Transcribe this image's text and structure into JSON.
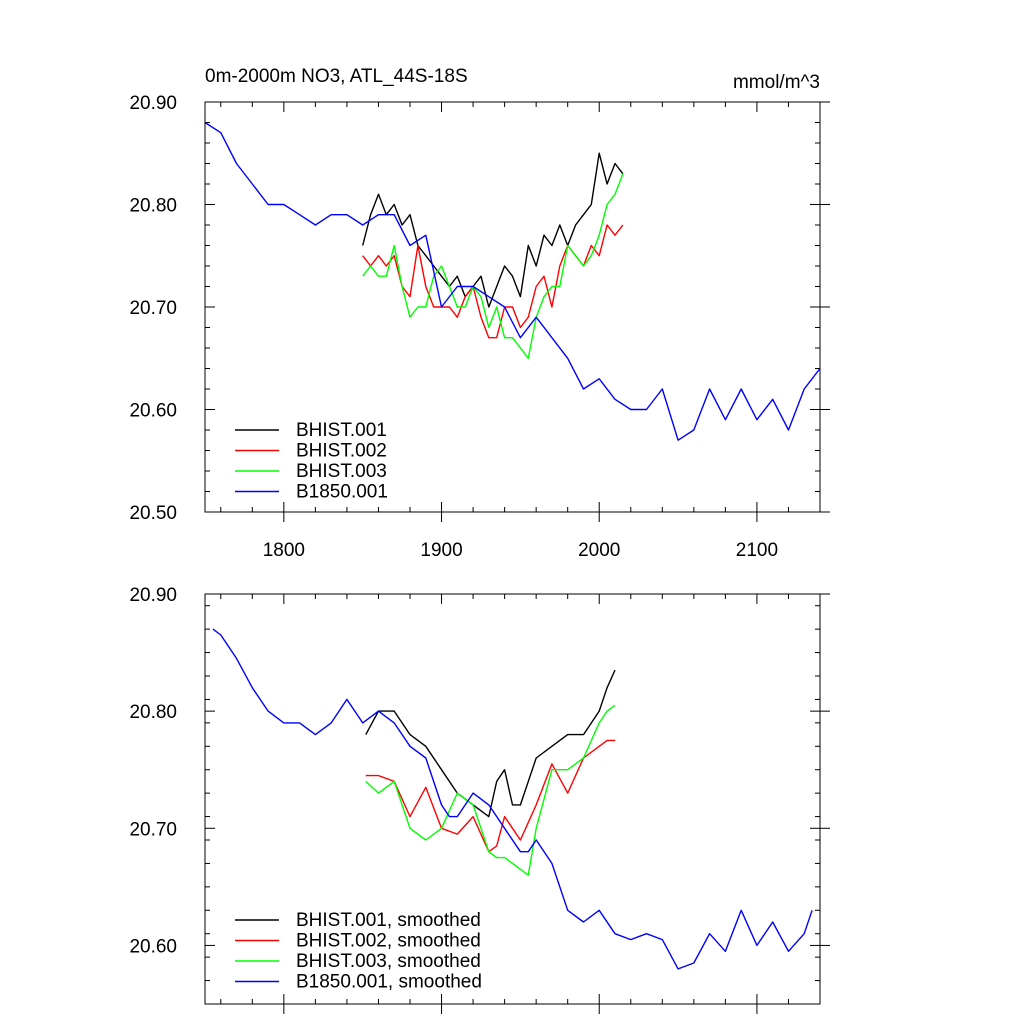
{
  "chart_data": [
    {
      "type": "line",
      "title": "0m-2000m NO3, ATL_44S-18S",
      "units": "mmol/m^3",
      "xlim": [
        1750,
        2140
      ],
      "ylim": [
        20.5,
        20.9
      ],
      "xticks": [
        1800,
        1900,
        2000,
        2100
      ],
      "yticks": [
        20.5,
        20.6,
        20.7,
        20.8,
        20.9
      ],
      "xtick_labels": [
        "1800",
        "1900",
        "2000",
        "2100"
      ],
      "ytick_labels": [
        "20.50",
        "20.60",
        "20.70",
        "20.80",
        "20.90"
      ],
      "grid": false,
      "legend_position": "bottom-left",
      "series": [
        {
          "name": "BHIST.001",
          "color": "#000000",
          "x": [
            1850,
            1855,
            1860,
            1865,
            1870,
            1875,
            1880,
            1885,
            1890,
            1895,
            1900,
            1905,
            1910,
            1915,
            1920,
            1925,
            1930,
            1935,
            1940,
            1945,
            1950,
            1955,
            1960,
            1965,
            1970,
            1975,
            1980,
            1985,
            1990,
            1995,
            2000,
            2005,
            2010,
            2015
          ],
          "y": [
            20.76,
            20.79,
            20.81,
            20.79,
            20.8,
            20.78,
            20.79,
            20.76,
            20.75,
            20.74,
            20.73,
            20.72,
            20.73,
            20.71,
            20.72,
            20.73,
            20.7,
            20.72,
            20.74,
            20.73,
            20.71,
            20.76,
            20.74,
            20.77,
            20.76,
            20.78,
            20.76,
            20.78,
            20.79,
            20.8,
            20.85,
            20.82,
            20.84,
            20.83
          ]
        },
        {
          "name": "BHIST.002",
          "color": "#ff0000",
          "x": [
            1850,
            1855,
            1860,
            1865,
            1870,
            1875,
            1880,
            1885,
            1890,
            1895,
            1900,
            1905,
            1910,
            1915,
            1920,
            1925,
            1930,
            1935,
            1940,
            1945,
            1950,
            1955,
            1960,
            1965,
            1970,
            1975,
            1980,
            1985,
            1990,
            1995,
            2000,
            2005,
            2010,
            2015
          ],
          "y": [
            20.75,
            20.74,
            20.75,
            20.74,
            20.75,
            20.72,
            20.71,
            20.76,
            20.72,
            20.7,
            20.7,
            20.7,
            20.69,
            20.71,
            20.72,
            20.69,
            20.67,
            20.67,
            20.7,
            20.7,
            20.68,
            20.69,
            20.72,
            20.73,
            20.7,
            20.74,
            20.76,
            20.75,
            20.74,
            20.76,
            20.75,
            20.78,
            20.77,
            20.78
          ]
        },
        {
          "name": "BHIST.003",
          "color": "#00ff00",
          "x": [
            1850,
            1855,
            1860,
            1865,
            1870,
            1875,
            1880,
            1885,
            1890,
            1895,
            1900,
            1905,
            1910,
            1915,
            1920,
            1925,
            1930,
            1935,
            1940,
            1945,
            1950,
            1955,
            1960,
            1965,
            1970,
            1975,
            1980,
            1985,
            1990,
            1995,
            2000,
            2005,
            2010,
            2015
          ],
          "y": [
            20.73,
            20.74,
            20.73,
            20.73,
            20.76,
            20.72,
            20.69,
            20.7,
            20.7,
            20.73,
            20.74,
            20.72,
            20.7,
            20.7,
            20.72,
            20.71,
            20.68,
            20.7,
            20.67,
            20.67,
            20.66,
            20.65,
            20.69,
            20.71,
            20.72,
            20.72,
            20.76,
            20.75,
            20.74,
            20.75,
            20.77,
            20.8,
            20.81,
            20.83
          ]
        },
        {
          "name": "B1850.001",
          "color": "#0000ff",
          "x": [
            1750,
            1760,
            1770,
            1780,
            1790,
            1800,
            1810,
            1820,
            1830,
            1840,
            1850,
            1860,
            1870,
            1880,
            1890,
            1900,
            1910,
            1920,
            1930,
            1940,
            1950,
            1960,
            1970,
            1980,
            1990,
            2000,
            2010,
            2020,
            2030,
            2040,
            2050,
            2060,
            2070,
            2080,
            2090,
            2100,
            2110,
            2120,
            2130,
            2140
          ],
          "y": [
            20.88,
            20.87,
            20.84,
            20.82,
            20.8,
            20.8,
            20.79,
            20.78,
            20.79,
            20.79,
            20.78,
            20.79,
            20.79,
            20.76,
            20.77,
            20.7,
            20.72,
            20.72,
            20.71,
            20.7,
            20.67,
            20.69,
            20.67,
            20.65,
            20.62,
            20.63,
            20.61,
            20.6,
            20.6,
            20.62,
            20.57,
            20.58,
            20.62,
            20.59,
            20.62,
            20.59,
            20.61,
            20.58,
            20.62,
            20.64
          ]
        }
      ]
    },
    {
      "type": "line",
      "xlim": [
        1750,
        2140
      ],
      "ylim": [
        20.55,
        20.9
      ],
      "xticks": [
        1800,
        1900,
        2000,
        2100
      ],
      "yticks": [
        20.6,
        20.7,
        20.8,
        20.9
      ],
      "ytick_labels": [
        "20.60",
        "20.70",
        "20.80",
        "20.90"
      ],
      "grid": false,
      "legend_position": "bottom-left",
      "series": [
        {
          "name": "BHIST.001, smoothed",
          "color": "#000000",
          "x": [
            1852,
            1860,
            1870,
            1880,
            1890,
            1900,
            1910,
            1920,
            1930,
            1935,
            1940,
            1945,
            1950,
            1960,
            1970,
            1980,
            1990,
            2000,
            2005,
            2010
          ],
          "y": [
            20.78,
            20.8,
            20.8,
            20.78,
            20.77,
            20.75,
            20.73,
            20.72,
            20.71,
            20.74,
            20.75,
            20.72,
            20.72,
            20.76,
            20.77,
            20.78,
            20.78,
            20.8,
            20.82,
            20.835
          ]
        },
        {
          "name": "BHIST.002, smoothed",
          "color": "#ff0000",
          "x": [
            1852,
            1860,
            1870,
            1880,
            1890,
            1900,
            1910,
            1920,
            1930,
            1935,
            1940,
            1945,
            1950,
            1960,
            1970,
            1980,
            1990,
            2000,
            2005,
            2010
          ],
          "y": [
            20.745,
            20.745,
            20.74,
            20.71,
            20.735,
            20.7,
            20.695,
            20.71,
            20.68,
            20.685,
            20.71,
            20.7,
            20.69,
            20.72,
            20.755,
            20.73,
            20.76,
            20.77,
            20.775,
            20.775
          ]
        },
        {
          "name": "BHIST.003, smoothed",
          "color": "#00ff00",
          "x": [
            1852,
            1860,
            1870,
            1880,
            1890,
            1900,
            1910,
            1920,
            1930,
            1935,
            1940,
            1945,
            1950,
            1955,
            1960,
            1970,
            1980,
            1990,
            2000,
            2005,
            2010
          ],
          "y": [
            20.74,
            20.73,
            20.74,
            20.7,
            20.69,
            20.7,
            20.73,
            20.72,
            20.68,
            20.675,
            20.675,
            20.67,
            20.665,
            20.66,
            20.7,
            20.75,
            20.75,
            20.76,
            20.79,
            20.8,
            20.805
          ]
        },
        {
          "name": "B1850.001, smoothed",
          "color": "#0000ff",
          "x": [
            1755,
            1760,
            1770,
            1780,
            1790,
            1800,
            1810,
            1820,
            1830,
            1840,
            1850,
            1860,
            1870,
            1880,
            1890,
            1900,
            1905,
            1910,
            1920,
            1930,
            1940,
            1950,
            1955,
            1960,
            1970,
            1980,
            1990,
            2000,
            2010,
            2020,
            2030,
            2040,
            2050,
            2060,
            2070,
            2080,
            2090,
            2100,
            2110,
            2120,
            2130,
            2135
          ],
          "y": [
            20.87,
            20.865,
            20.845,
            20.82,
            20.8,
            20.79,
            20.79,
            20.78,
            20.79,
            20.81,
            20.79,
            20.8,
            20.79,
            20.77,
            20.76,
            20.72,
            20.71,
            20.71,
            20.73,
            20.72,
            20.7,
            20.68,
            20.68,
            20.69,
            20.67,
            20.63,
            20.62,
            20.63,
            20.61,
            20.605,
            20.61,
            20.605,
            20.58,
            20.585,
            20.61,
            20.595,
            20.63,
            20.6,
            20.62,
            20.595,
            20.61,
            20.63
          ]
        }
      ]
    }
  ]
}
